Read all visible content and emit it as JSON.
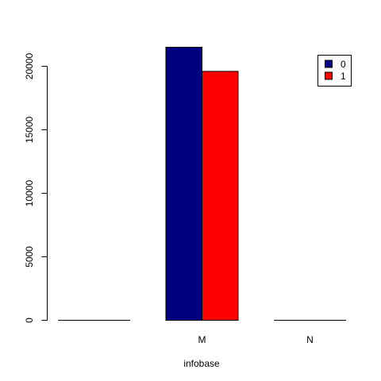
{
  "chart_data": {
    "type": "bar",
    "categories": [
      "",
      "M",
      "N"
    ],
    "series": [
      {
        "name": "0",
        "values": [
          0,
          21500,
          0
        ],
        "color": "#000080"
      },
      {
        "name": "1",
        "values": [
          0,
          19600,
          0
        ],
        "color": "#ff0000"
      }
    ],
    "title": "",
    "xlabel": "infobase",
    "ylabel": "",
    "ylim": [
      0,
      21500
    ],
    "yticks": [
      "0",
      "5000",
      "10000",
      "15000",
      "20000"
    ],
    "legend": {
      "position": "top-right"
    },
    "grid": false
  }
}
